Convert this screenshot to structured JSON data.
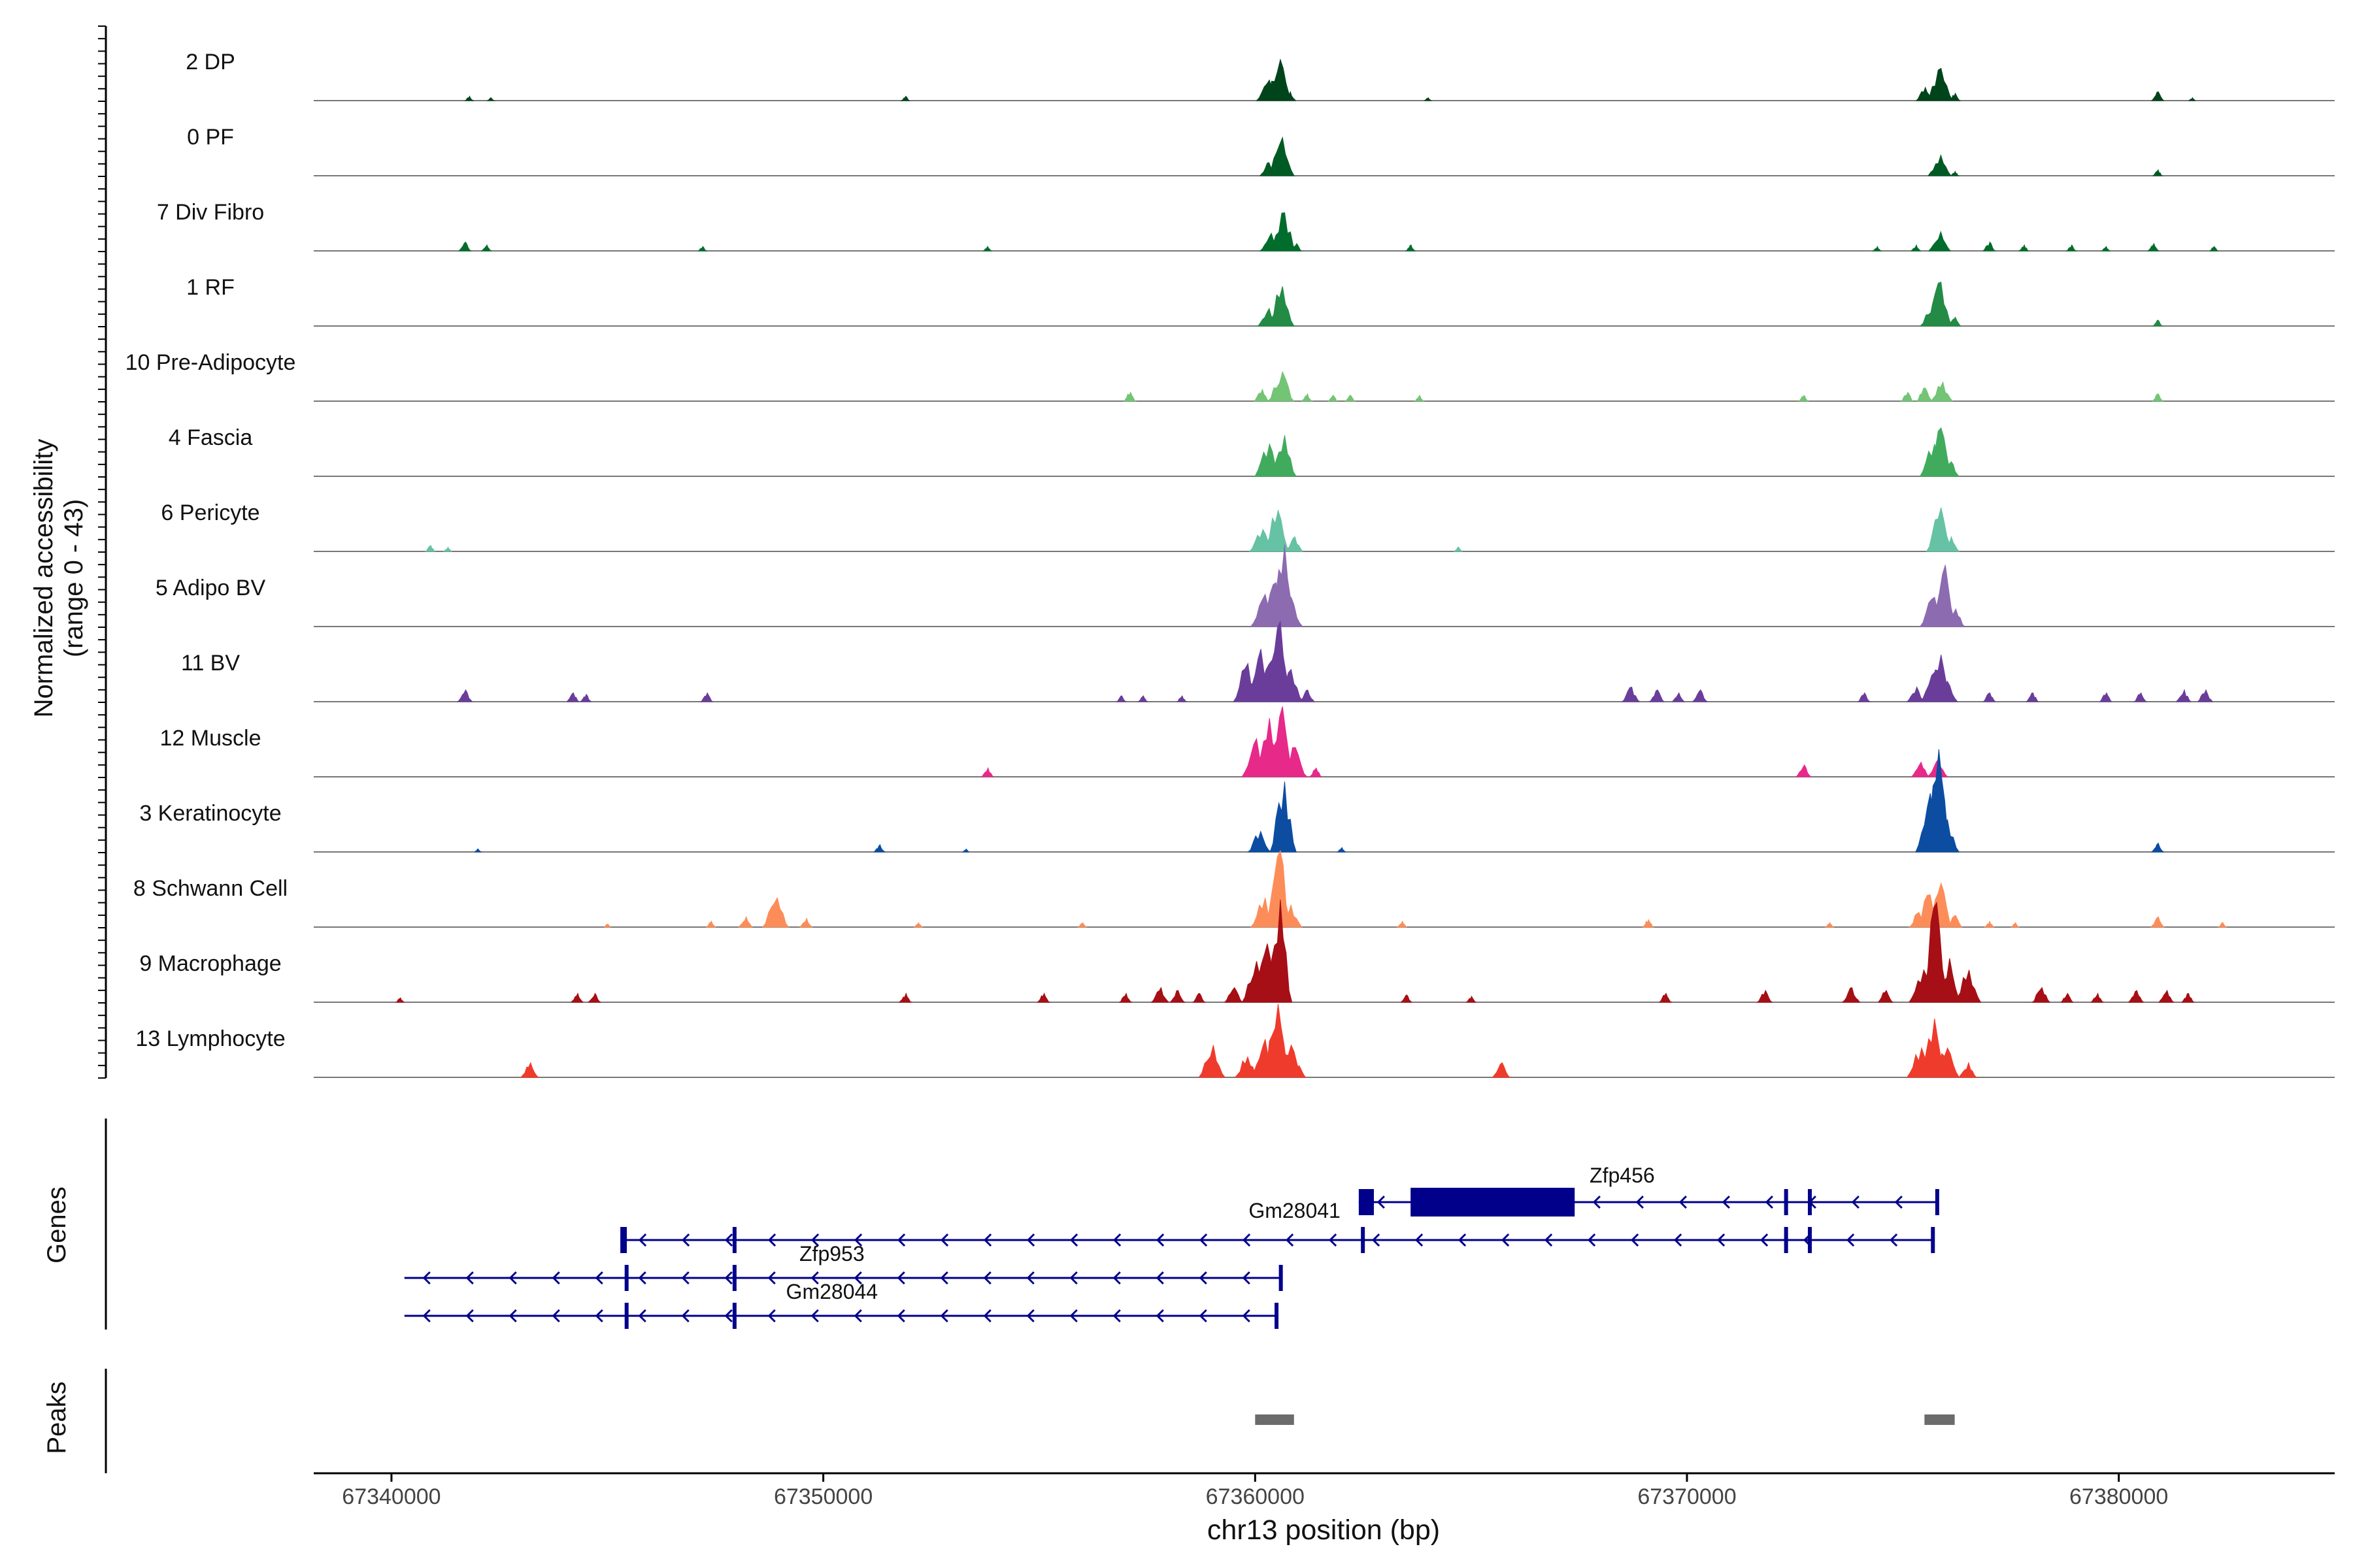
{
  "chart_data": {
    "type": "area",
    "title": "",
    "xlabel": "chr13 position (bp)",
    "ylabel": "Normalized accessibility",
    "ylabel_range": "(range 0 - 43)",
    "ylim": [
      0,
      43
    ],
    "xlim": [
      67338200,
      67385000
    ],
    "x_ticks": [
      67340000,
      67350000,
      67360000,
      67370000,
      67380000
    ],
    "x_tick_labels": [
      "67340000",
      "67350000",
      "67360000",
      "67370000",
      "67380000"
    ],
    "tracks": [
      {
        "name": "2 DP",
        "color": "#00441b",
        "peaks": [
          [
            67341800,
            3
          ],
          [
            67342300,
            2
          ],
          [
            67351900,
            3
          ],
          [
            67360300,
            14
          ],
          [
            67360550,
            28
          ],
          [
            67360800,
            6
          ],
          [
            67364000,
            2
          ],
          [
            67375500,
            9
          ],
          [
            67375850,
            22
          ],
          [
            67376200,
            5
          ],
          [
            67380900,
            6
          ],
          [
            67381700,
            2
          ]
        ]
      },
      {
        "name": "0 PF",
        "color": "#005a24",
        "peaks": [
          [
            67360300,
            9
          ],
          [
            67360600,
            26
          ],
          [
            67375850,
            14
          ],
          [
            67376200,
            3
          ],
          [
            67380900,
            4
          ]
        ]
      },
      {
        "name": "7 Div Fibro",
        "color": "#006d2c",
        "peaks": [
          [
            67341700,
            6
          ],
          [
            67342200,
            4
          ],
          [
            67347200,
            3
          ],
          [
            67353800,
            3
          ],
          [
            67360350,
            12
          ],
          [
            67360650,
            26
          ],
          [
            67360950,
            5
          ],
          [
            67363600,
            4
          ],
          [
            67374400,
            3
          ],
          [
            67375300,
            4
          ],
          [
            67375850,
            13
          ],
          [
            67377000,
            6
          ],
          [
            67377800,
            4
          ],
          [
            67378900,
            4
          ],
          [
            67379700,
            3
          ],
          [
            67380800,
            5
          ],
          [
            67382200,
            3
          ]
        ]
      },
      {
        "name": "1 RF",
        "color": "#238b45",
        "peaks": [
          [
            67360300,
            12
          ],
          [
            67360600,
            27
          ],
          [
            67375700,
            16
          ],
          [
            67375850,
            30
          ],
          [
            67376200,
            6
          ],
          [
            67380900,
            4
          ]
        ]
      },
      {
        "name": "10 Pre-Adipocyte",
        "color": "#74c476",
        "peaks": [
          [
            67357100,
            6
          ],
          [
            67360150,
            8
          ],
          [
            67360600,
            20
          ],
          [
            67361200,
            5
          ],
          [
            67361800,
            4
          ],
          [
            67362200,
            4
          ],
          [
            67363800,
            4
          ],
          [
            67372700,
            4
          ],
          [
            67375100,
            6
          ],
          [
            67375500,
            9
          ],
          [
            67375900,
            13
          ],
          [
            67380900,
            5
          ]
        ]
      },
      {
        "name": "4 Fascia",
        "color": "#41ab5d",
        "peaks": [
          [
            67360300,
            22
          ],
          [
            67360650,
            28
          ],
          [
            67375700,
            22
          ],
          [
            67375850,
            33
          ],
          [
            67376100,
            10
          ]
        ]
      },
      {
        "name": "6 Pericyte",
        "color": "#66c2a4",
        "peaks": [
          [
            67340900,
            4
          ],
          [
            67341300,
            3
          ],
          [
            67360150,
            15
          ],
          [
            67360500,
            28
          ],
          [
            67360900,
            10
          ],
          [
            67364700,
            3
          ],
          [
            67375850,
            30
          ],
          [
            67376100,
            10
          ]
        ]
      },
      {
        "name": "5 Adipo BV",
        "color": "#8c6bb1",
        "peaks": [
          [
            67360200,
            22
          ],
          [
            67360450,
            30
          ],
          [
            67360650,
            56
          ],
          [
            67360800,
            20
          ],
          [
            67375700,
            20
          ],
          [
            67375950,
            42
          ],
          [
            67376200,
            12
          ]
        ]
      },
      {
        "name": "11 BV",
        "color": "#6a3d9a",
        "peaks": [
          [
            67341700,
            8
          ],
          [
            67344200,
            6
          ],
          [
            67344500,
            5
          ],
          [
            67347300,
            6
          ],
          [
            67356900,
            4
          ],
          [
            67357400,
            4
          ],
          [
            67358300,
            4
          ],
          [
            67359800,
            26
          ],
          [
            67360100,
            36
          ],
          [
            67360350,
            28
          ],
          [
            67360550,
            55
          ],
          [
            67360800,
            22
          ],
          [
            67361200,
            8
          ],
          [
            67368700,
            10
          ],
          [
            67369300,
            8
          ],
          [
            67369800,
            6
          ],
          [
            67370300,
            8
          ],
          [
            67374100,
            6
          ],
          [
            67375300,
            10
          ],
          [
            67375700,
            20
          ],
          [
            67375850,
            32
          ],
          [
            67376000,
            14
          ],
          [
            67377000,
            6
          ],
          [
            67378000,
            6
          ],
          [
            67379700,
            6
          ],
          [
            67380500,
            6
          ],
          [
            67381500,
            8
          ],
          [
            67382000,
            8
          ]
        ]
      },
      {
        "name": "12 Muscle",
        "color": "#e7298a",
        "peaks": [
          [
            67353800,
            6
          ],
          [
            67360000,
            26
          ],
          [
            67360300,
            40
          ],
          [
            67360600,
            48
          ],
          [
            67360900,
            20
          ],
          [
            67361400,
            6
          ],
          [
            67372700,
            8
          ],
          [
            67375400,
            10
          ],
          [
            67375800,
            12
          ]
        ]
      },
      {
        "name": "3 Keratinocyte",
        "color": "#0c4da2",
        "peaks": [
          [
            67342000,
            2
          ],
          [
            67351300,
            5
          ],
          [
            67353300,
            2
          ],
          [
            67360100,
            14
          ],
          [
            67360650,
            48
          ],
          [
            67362000,
            3
          ],
          [
            67375600,
            40
          ],
          [
            67375800,
            70
          ],
          [
            67376000,
            22
          ],
          [
            67380900,
            6
          ]
        ]
      },
      {
        "name": "8 Schwann Cell",
        "color": "#fc8d59",
        "peaks": [
          [
            67345000,
            2
          ],
          [
            67347400,
            4
          ],
          [
            67348200,
            7
          ],
          [
            67348900,
            20
          ],
          [
            67349600,
            6
          ],
          [
            67352200,
            3
          ],
          [
            67356000,
            3
          ],
          [
            67360200,
            20
          ],
          [
            67360550,
            52
          ],
          [
            67360800,
            15
          ],
          [
            67363400,
            4
          ],
          [
            67369100,
            5
          ],
          [
            67373300,
            3
          ],
          [
            67375350,
            10
          ],
          [
            67375600,
            22
          ],
          [
            67375850,
            30
          ],
          [
            67376200,
            8
          ],
          [
            67377000,
            4
          ],
          [
            67377600,
            3
          ],
          [
            67380900,
            7
          ],
          [
            67382400,
            3
          ]
        ]
      },
      {
        "name": "9 Macrophage",
        "color": "#a50f15",
        "peaks": [
          [
            67340200,
            3
          ],
          [
            67344300,
            6
          ],
          [
            67344700,
            6
          ],
          [
            67351900,
            6
          ],
          [
            67355100,
            6
          ],
          [
            67357000,
            6
          ],
          [
            67357800,
            10
          ],
          [
            67358200,
            8
          ],
          [
            67358700,
            6
          ],
          [
            67359500,
            10
          ],
          [
            67360000,
            28
          ],
          [
            67360250,
            40
          ],
          [
            67360550,
            70
          ],
          [
            67363500,
            5
          ],
          [
            67365000,
            4
          ],
          [
            67369500,
            6
          ],
          [
            67371800,
            8
          ],
          [
            67373800,
            10
          ],
          [
            67374600,
            8
          ],
          [
            67375450,
            22
          ],
          [
            67375750,
            68
          ],
          [
            67376050,
            30
          ],
          [
            67376500,
            22
          ],
          [
            67378200,
            10
          ],
          [
            67378800,
            6
          ],
          [
            67379500,
            6
          ],
          [
            67380400,
            8
          ],
          [
            67381100,
            8
          ],
          [
            67381600,
            6
          ]
        ]
      },
      {
        "name": "13 Lymphocyte",
        "color": "#ef3b2c",
        "peaks": [
          [
            67343200,
            10
          ],
          [
            67359000,
            22
          ],
          [
            67359800,
            14
          ],
          [
            67360200,
            26
          ],
          [
            67360500,
            50
          ],
          [
            67360800,
            22
          ],
          [
            67361000,
            8
          ],
          [
            67365700,
            10
          ],
          [
            67375400,
            20
          ],
          [
            67375700,
            40
          ],
          [
            67376000,
            20
          ],
          [
            67376500,
            10
          ]
        ]
      }
    ],
    "genes_label": "Genes",
    "genes": [
      {
        "name": "Zfp456",
        "start": 67362400,
        "end": 67375800,
        "strand": "-",
        "row": 0,
        "exons": [
          [
            67362400,
            67362750,
            "s"
          ],
          [
            67363600,
            67367400,
            "b"
          ],
          [
            67372250,
            67372300,
            "t"
          ],
          [
            67372800,
            67372850,
            "t"
          ],
          [
            67375750,
            67375800,
            "t"
          ]
        ]
      },
      {
        "name": "Gm28041",
        "start": 67345300,
        "end": 67375700,
        "strand": "-",
        "row": 1,
        "exons": [
          [
            67345300,
            67345450,
            "t"
          ],
          [
            67347900,
            67347950,
            "t"
          ],
          [
            67362450,
            67362500,
            "t"
          ],
          [
            67372250,
            67372300,
            "t"
          ],
          [
            67372800,
            67372850,
            "t"
          ],
          [
            67375650,
            67375700,
            "t"
          ]
        ]
      },
      {
        "name": "Zfp953",
        "start": 67340300,
        "end": 67360600,
        "strand": "-",
        "row": 2,
        "exons": [
          [
            67345400,
            67345450,
            "t"
          ],
          [
            67347900,
            67347950,
            "t"
          ],
          [
            67360550,
            67360600,
            "t"
          ]
        ]
      },
      {
        "name": "Gm28044",
        "start": 67340300,
        "end": 67360500,
        "strand": "-",
        "row": 3,
        "exons": [
          [
            67345400,
            67345450,
            "t"
          ],
          [
            67347900,
            67347950,
            "t"
          ],
          [
            67360450,
            67360500,
            "t"
          ]
        ]
      }
    ],
    "peaks_label": "Peaks",
    "peak_regions": [
      [
        67360000,
        67360900
      ],
      [
        67375500,
        67376200
      ]
    ]
  }
}
